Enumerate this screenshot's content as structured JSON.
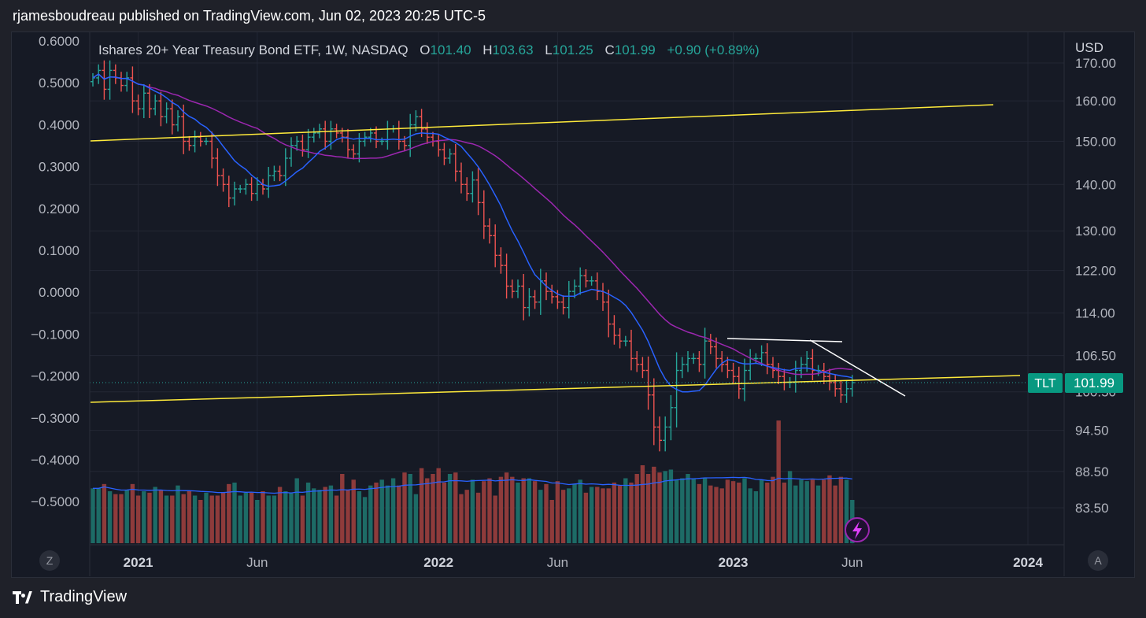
{
  "header": {
    "published": "rjamesboudreau published on TradingView.com, Jun 02, 2023 20:25 UTC-5"
  },
  "legend": {
    "name": "Ishares 20+ Year Treasury Bond ETF, 1W, NASDAQ",
    "o_label": "O",
    "o": "101.40",
    "h_label": "H",
    "h": "103.63",
    "l_label": "L",
    "l": "101.25",
    "c_label": "C",
    "c": "101.99",
    "chg": "+0.90 (+0.89%)"
  },
  "price_axis": {
    "currency": "USD"
  },
  "last_price": {
    "symbol": "TLT",
    "value": "101.99"
  },
  "buttons": {
    "left": "Z",
    "right": "A"
  },
  "brand": {
    "name": "TradingView"
  },
  "colors": {
    "up": "#26a69a",
    "down": "#ef5350",
    "sma_fast": "#2962ff",
    "sma_slow": "#9c27b0",
    "trendline": "#ffeb3b",
    "pattern": "#ffffff",
    "background": "#161a25"
  },
  "chart_data": {
    "type": "ohlc-bar",
    "symbol": "TLT",
    "interval": "1W",
    "left_axis": {
      "ticks": [
        "0.6000",
        "0.5000",
        "0.4000",
        "0.3000",
        "0.2000",
        "0.1000",
        "0.0000",
        "−0.1000",
        "−0.2000",
        "−0.3000",
        "−0.4000",
        "−0.5000"
      ],
      "range": [
        -0.59,
        0.61
      ]
    },
    "right_axis": {
      "ticks": [
        "170.00",
        "160.00",
        "150.00",
        "140.00",
        "130.00",
        "122.00",
        "114.00",
        "106.50",
        "100.50",
        "94.50",
        "88.50",
        "83.50"
      ],
      "scale": "log"
    },
    "x_ticks": [
      {
        "label": "2021",
        "week": 8,
        "bold": true
      },
      {
        "label": "Jun",
        "week": 29,
        "bold": false
      },
      {
        "label": "2022",
        "week": 61,
        "bold": true
      },
      {
        "label": "Jun",
        "week": 82,
        "bold": false
      },
      {
        "label": "2023",
        "week": 113,
        "bold": true
      },
      {
        "label": "Jun",
        "week": 134,
        "bold": false
      },
      {
        "label": "2024",
        "week": 165,
        "bold": true
      }
    ],
    "weekly_close": [
      166,
      168,
      163,
      168,
      166,
      164,
      166,
      160,
      158,
      162,
      158,
      160,
      156,
      158,
      154,
      156,
      150,
      149,
      151,
      150,
      150,
      146,
      142,
      140,
      137,
      139,
      139,
      140,
      138,
      140,
      139,
      142,
      143,
      142,
      146,
      149,
      150,
      148,
      151,
      152,
      153,
      150,
      153,
      152,
      151,
      148,
      147,
      150,
      151,
      152,
      150,
      150,
      153,
      153,
      150,
      149,
      154,
      156,
      153,
      151,
      150,
      148,
      146,
      147,
      143,
      140,
      138,
      141,
      136,
      131,
      129,
      125,
      123,
      119,
      118,
      119,
      115,
      117,
      116,
      120,
      118,
      117,
      116,
      115,
      118,
      119,
      121,
      120,
      120,
      118,
      116,
      112,
      110,
      109,
      109,
      106,
      105,
      104,
      100,
      95,
      93,
      95,
      98,
      104,
      105,
      106,
      106,
      105,
      109,
      108,
      106,
      105,
      104,
      103,
      101,
      104,
      106,
      106,
      107,
      105,
      104,
      103,
      102,
      102,
      104,
      105,
      106,
      104,
      104,
      103,
      102,
      101,
      100,
      101,
      101.99
    ],
    "volume": [
      38,
      38,
      41,
      36,
      34,
      34,
      37,
      41,
      33,
      36,
      35,
      39,
      37,
      33,
      33,
      40,
      34,
      36,
      33,
      30,
      35,
      33,
      33,
      35,
      41,
      42,
      33,
      35,
      35,
      30,
      36,
      33,
      33,
      39,
      36,
      35,
      45,
      33,
      42,
      38,
      37,
      39,
      40,
      33,
      48,
      37,
      44,
      36,
      32,
      40,
      42,
      44,
      40,
      45,
      40,
      49,
      48,
      34,
      52,
      45,
      48,
      52,
      42,
      48,
      49,
      34,
      37,
      44,
      35,
      43,
      45,
      33,
      46,
      49,
      46,
      42,
      45,
      45,
      43,
      37,
      41,
      30,
      43,
      37,
      38,
      41,
      44,
      35,
      39,
      39,
      38,
      38,
      42,
      40,
      45,
      42,
      48,
      54,
      48,
      53,
      49,
      50,
      51,
      44,
      45,
      48,
      45,
      41,
      45,
      40,
      39,
      38,
      44,
      43,
      42,
      45,
      38,
      36,
      44,
      42,
      46,
      85,
      42,
      50,
      40,
      44,
      43,
      44,
      40,
      44,
      47,
      40,
      46,
      44,
      30
    ],
    "indicators": [
      {
        "name": "SMA fast",
        "period": 10
      },
      {
        "name": "SMA slow",
        "period": 30
      },
      {
        "name": "Volume MA",
        "period": 20
      }
    ]
  }
}
